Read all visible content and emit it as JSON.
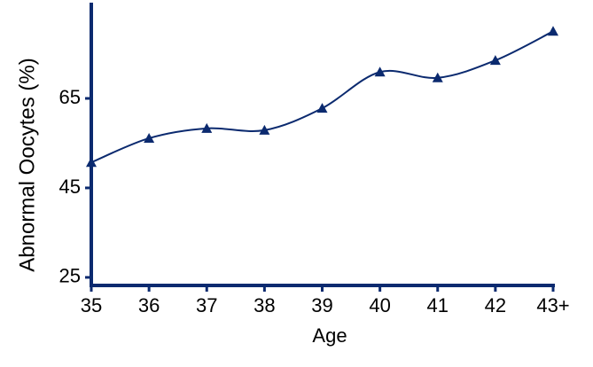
{
  "chart_data": {
    "type": "line",
    "x_label": "Age",
    "y_label": "Abnormal Oocytes (%)",
    "categories": [
      "35",
      "36",
      "37",
      "38",
      "39",
      "40",
      "41",
      "42",
      "43+"
    ],
    "series": [
      {
        "name": "Abnormal Oocytes",
        "color": "#0b2a6f",
        "values": [
          50.7,
          56.1,
          58.3,
          57.9,
          62.8,
          70.9,
          69.6,
          73.5,
          80.0
        ]
      }
    ],
    "ylim": [
      23.2,
      86.4
    ],
    "yticks": [
      25,
      45,
      65
    ],
    "smooth": true,
    "marker": "triangle"
  }
}
